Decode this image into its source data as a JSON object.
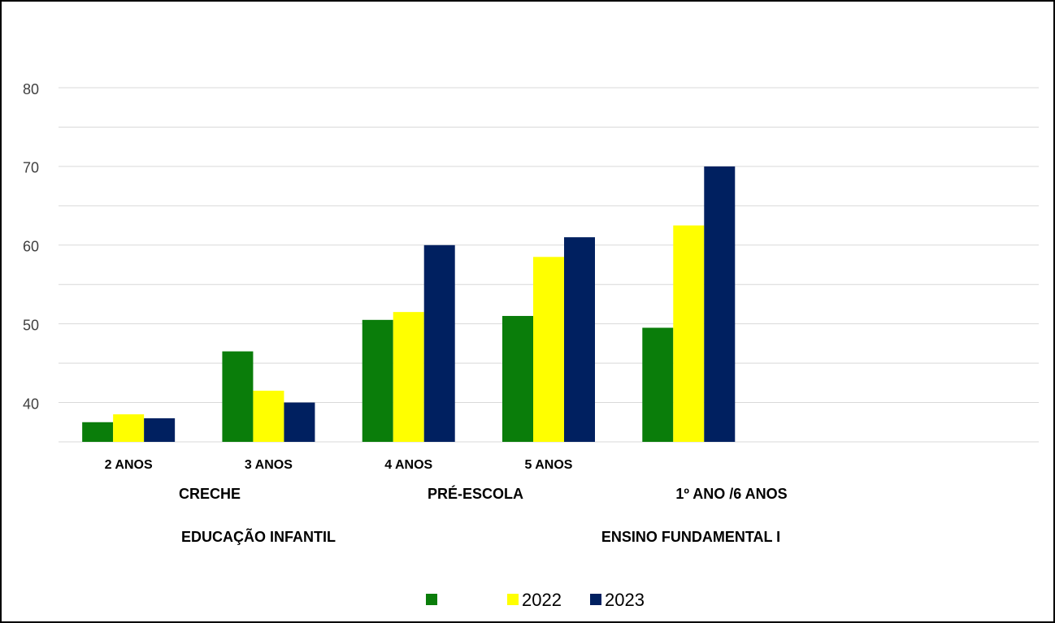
{
  "chart_data": {
    "type": "bar",
    "categories": [
      "2 ANOS",
      "3 ANOS",
      "4 ANOS",
      "5 ANOS",
      null,
      null,
      null
    ],
    "groups": [
      "CRECHE",
      "PRÉ-ESCOLA",
      "1º ANO /6 ANOS"
    ],
    "supergroups": [
      "EDUCAÇÃO INFANTIL",
      "ENSINO FUNDAMENTAL I"
    ],
    "series": [
      {
        "name": null,
        "color": "#0a7d0a",
        "values": [
          37.5,
          46.5,
          50.5,
          51.0,
          49.5,
          null,
          null
        ]
      },
      {
        "name": "2022",
        "color": "#ffff00",
        "values": [
          38.5,
          41.5,
          51.5,
          58.5,
          62.5,
          null,
          null
        ]
      },
      {
        "name": "2023",
        "color": "#002060",
        "values": [
          38.0,
          40.0,
          60.0,
          61.0,
          70.0,
          null,
          null
        ]
      }
    ],
    "ylim": [
      35,
      80
    ],
    "yticks": [
      40,
      50,
      60,
      70,
      80
    ],
    "grid": true,
    "minor_grid": true,
    "legend": "bottom"
  }
}
